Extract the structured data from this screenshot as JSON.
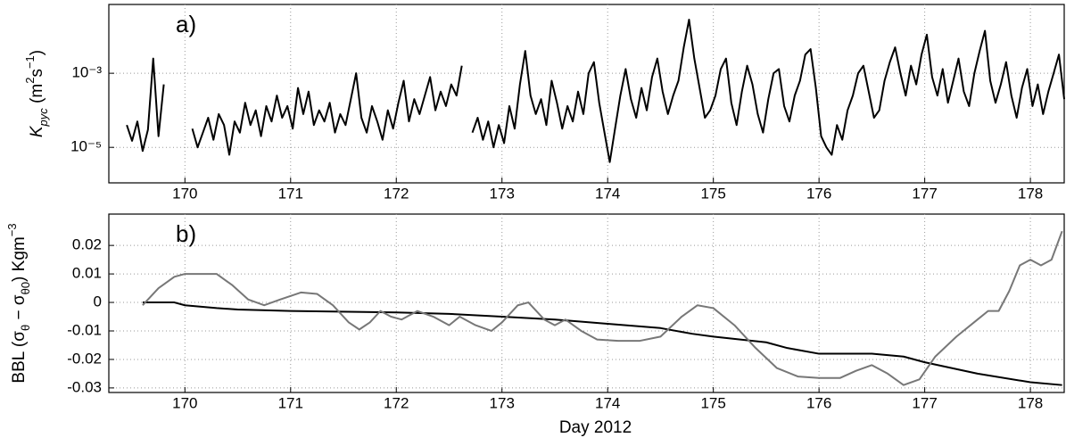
{
  "chart_data": [
    {
      "type": "line",
      "annotation": "a)",
      "log_scale": true,
      "grid": true,
      "ylabel": [
        {
          "text": "K"
        },
        {
          "text": "pyc",
          "script": "sub"
        },
        {
          "text": " (m"
        },
        {
          "text": "2",
          "script": "sup"
        },
        {
          "text": "s"
        },
        {
          "text": "−1",
          "script": "sup"
        },
        {
          "text": ")"
        }
      ],
      "xlim": [
        169.28,
        178.32
      ],
      "xticks": [
        170,
        171,
        172,
        173,
        174,
        175,
        176,
        177,
        178
      ],
      "ylim": [
        1.1e-06,
        0.072
      ],
      "yticks": [
        {
          "value": 0.001,
          "label": "10⁻³"
        },
        {
          "value": 1e-05,
          "label": "10⁻⁵"
        }
      ],
      "series": [
        {
          "color": "#000000",
          "x": [
            169.45,
            169.5,
            169.55,
            169.6,
            169.65,
            169.7,
            169.75,
            169.8,
            169.95,
            170.07,
            170.12,
            170.17,
            170.22,
            170.27,
            170.32,
            170.37,
            170.42,
            170.47,
            170.52,
            170.57,
            170.62,
            170.67,
            170.72,
            170.77,
            170.82,
            170.87,
            170.92,
            170.97,
            171.02,
            171.07,
            171.12,
            171.17,
            171.22,
            171.27,
            171.32,
            171.37,
            171.42,
            171.47,
            171.52,
            171.57,
            171.62,
            171.67,
            171.72,
            171.77,
            171.82,
            171.87,
            171.92,
            171.97,
            172.02,
            172.07,
            172.12,
            172.17,
            172.22,
            172.27,
            172.32,
            172.37,
            172.42,
            172.47,
            172.52,
            172.57,
            172.62,
            172.67,
            172.72,
            172.77,
            172.82,
            172.87,
            172.92,
            172.97,
            173.02,
            173.07,
            173.12,
            173.17,
            173.22,
            173.27,
            173.32,
            173.37,
            173.42,
            173.47,
            173.52,
            173.57,
            173.62,
            173.67,
            173.72,
            173.77,
            173.82,
            173.87,
            173.92,
            173.97,
            174.02,
            174.07,
            174.12,
            174.17,
            174.22,
            174.27,
            174.32,
            174.37,
            174.42,
            174.47,
            174.52,
            174.57,
            174.62,
            174.67,
            174.72,
            174.77,
            174.82,
            174.87,
            174.92,
            174.97,
            175.02,
            175.07,
            175.12,
            175.17,
            175.22,
            175.27,
            175.32,
            175.37,
            175.42,
            175.47,
            175.52,
            175.57,
            175.62,
            175.67,
            175.72,
            175.77,
            175.82,
            175.87,
            175.92,
            175.97,
            176.02,
            176.07,
            176.12,
            176.17,
            176.22,
            176.27,
            176.32,
            176.37,
            176.42,
            176.47,
            176.52,
            176.57,
            176.62,
            176.67,
            176.72,
            176.77,
            176.82,
            176.87,
            176.92,
            176.97,
            177.02,
            177.07,
            177.12,
            177.17,
            177.22,
            177.27,
            177.32,
            177.37,
            177.42,
            177.47,
            177.52,
            177.57,
            177.62,
            177.67,
            177.72,
            177.77,
            177.82,
            177.87,
            177.92,
            177.97,
            178.02,
            178.07,
            178.12,
            178.17,
            178.22,
            178.27,
            178.32
          ],
          "values": [
            4e-05,
            1.5e-05,
            5e-05,
            8e-06,
            3e-05,
            0.0025,
            2e-05,
            0.0005,
            null,
            3.2e-05,
            1e-05,
            2.5e-05,
            6.3e-05,
            1.6e-05,
            7.9e-05,
            4e-05,
            6.3e-06,
            5e-05,
            2.5e-05,
            0.00016,
            4e-05,
            0.0001,
            2e-05,
            0.00013,
            5e-05,
            0.00025,
            6.3e-05,
            0.00013,
            3.2e-05,
            0.0004,
            7.9e-05,
            0.00032,
            4e-05,
            0.0001,
            5e-05,
            0.00016,
            2.5e-05,
            7.9e-05,
            4e-05,
            0.0002,
            0.001,
            6.3e-05,
            2.5e-05,
            0.00013,
            5e-05,
            1.6e-05,
            0.0001,
            3.2e-05,
            0.00016,
            0.00063,
            5e-05,
            0.0002,
            7.9e-05,
            0.00025,
            0.00079,
            0.0001,
            0.00032,
            0.00013,
            0.0005,
            0.00025,
            0.0016,
            null,
            2.5e-05,
            6.3e-05,
            1.6e-05,
            5e-05,
            1e-05,
            4e-05,
            1.3e-05,
            0.00013,
            3.2e-05,
            0.0005,
            0.004,
            0.00025,
            7.9e-05,
            0.0002,
            4e-05,
            0.00063,
            0.00016,
            3.2e-05,
            0.00013,
            5e-05,
            0.00032,
            7.9e-05,
            0.001,
            0.002,
            0.00016,
            2.5e-05,
            4e-06,
            3.2e-05,
            0.00025,
            0.0013,
            0.0002,
            6.3e-05,
            0.0004,
            0.0001,
            0.00079,
            0.0025,
            0.00032,
            7.9e-05,
            0.00025,
            0.00063,
            0.005,
            0.028,
            0.0025,
            0.0004,
            6.3e-05,
            0.0001,
            0.00025,
            0.0013,
            0.0025,
            0.00016,
            4e-05,
            0.00032,
            0.0016,
            0.0005,
            7.9e-05,
            2.5e-05,
            0.0002,
            0.001,
            0.0013,
            0.00013,
            5e-05,
            0.00025,
            0.00063,
            0.0032,
            0.0045,
            0.0004,
            2e-05,
            1e-05,
            6.3e-06,
            4e-05,
            1.6e-05,
            0.0001,
            0.00025,
            0.001,
            0.0016,
            0.00032,
            6.3e-05,
            0.0001,
            0.00063,
            0.002,
            0.005,
            0.001,
            0.00025,
            0.0016,
            0.0005,
            0.0032,
            0.011,
            0.00079,
            0.00025,
            0.0013,
            0.00016,
            0.00063,
            0.0025,
            0.00032,
            0.00013,
            0.001,
            0.004,
            0.014,
            0.00063,
            0.00016,
            0.0005,
            0.002,
            0.00025,
            6.3e-05,
            0.0004,
            0.0013,
            0.00013,
            0.0005,
            7.9e-05,
            0.00032,
            0.001,
            0.0032,
            0.0002
          ]
        }
      ]
    },
    {
      "type": "line",
      "annotation": "b)",
      "grid": true,
      "ylabel": [
        {
          "text": "BBL (σ"
        },
        {
          "text": "θ",
          "script": "sub"
        },
        {
          "text": " − σ"
        },
        {
          "text": "θ0",
          "script": "sub"
        },
        {
          "text": ") Kgm"
        },
        {
          "text": "−3",
          "script": "sup"
        }
      ],
      "xlabel": "Day 2012",
      "xlim": [
        169.28,
        178.32
      ],
      "xticks": [
        170,
        171,
        172,
        173,
        174,
        175,
        176,
        177,
        178
      ],
      "ylim": [
        -0.0316,
        0.031
      ],
      "yticks": [
        0.02,
        0.01,
        0,
        -0.01,
        -0.02,
        -0.03
      ],
      "series": [
        {
          "color": "#000000",
          "x": [
            169.6,
            169.9,
            170.0,
            170.3,
            170.5,
            171.0,
            172.0,
            172.5,
            173.0,
            173.5,
            174.0,
            174.5,
            174.8,
            175.0,
            175.5,
            175.7,
            176.0,
            176.5,
            176.8,
            177.0,
            177.5,
            178.0,
            178.3
          ],
          "values": [
            0,
            0,
            -0.001,
            -0.002,
            -0.0025,
            -0.003,
            -0.0035,
            -0.004,
            -0.005,
            -0.006,
            -0.0075,
            -0.009,
            -0.011,
            -0.012,
            -0.014,
            -0.016,
            -0.018,
            -0.018,
            -0.019,
            -0.021,
            -0.025,
            -0.028,
            -0.029
          ]
        },
        {
          "color": "#777777",
          "x": [
            169.6,
            169.75,
            169.9,
            170.0,
            170.3,
            170.45,
            170.6,
            170.75,
            170.9,
            171.1,
            171.25,
            171.4,
            171.55,
            171.65,
            171.75,
            171.85,
            171.95,
            172.05,
            172.2,
            172.35,
            172.5,
            172.6,
            172.75,
            172.9,
            173.0,
            173.15,
            173.25,
            173.4,
            173.5,
            173.6,
            173.75,
            173.9,
            174.1,
            174.3,
            174.5,
            174.7,
            174.85,
            175.0,
            175.2,
            175.4,
            175.6,
            175.8,
            176.0,
            176.2,
            176.35,
            176.5,
            176.65,
            176.8,
            176.95,
            177.1,
            177.3,
            177.5,
            177.6,
            177.7,
            177.8,
            177.9,
            178.0,
            178.1,
            178.2,
            178.3
          ],
          "values": [
            -0.001,
            0.005,
            0.009,
            0.01,
            0.01,
            0.006,
            0.001,
            -0.001,
            0.001,
            0.0035,
            0.003,
            -0.001,
            -0.007,
            -0.0095,
            -0.007,
            -0.003,
            -0.005,
            -0.006,
            -0.003,
            -0.005,
            -0.008,
            -0.005,
            -0.008,
            -0.01,
            -0.007,
            -0.001,
            0,
            -0.006,
            -0.008,
            -0.006,
            -0.01,
            -0.013,
            -0.0135,
            -0.0135,
            -0.012,
            -0.005,
            -0.001,
            -0.002,
            -0.008,
            -0.016,
            -0.023,
            -0.026,
            -0.0265,
            -0.0265,
            -0.024,
            -0.022,
            -0.025,
            -0.029,
            -0.027,
            -0.019,
            -0.012,
            -0.006,
            -0.003,
            -0.003,
            0.004,
            0.013,
            0.015,
            0.013,
            0.015,
            0.025
          ]
        }
      ]
    }
  ]
}
